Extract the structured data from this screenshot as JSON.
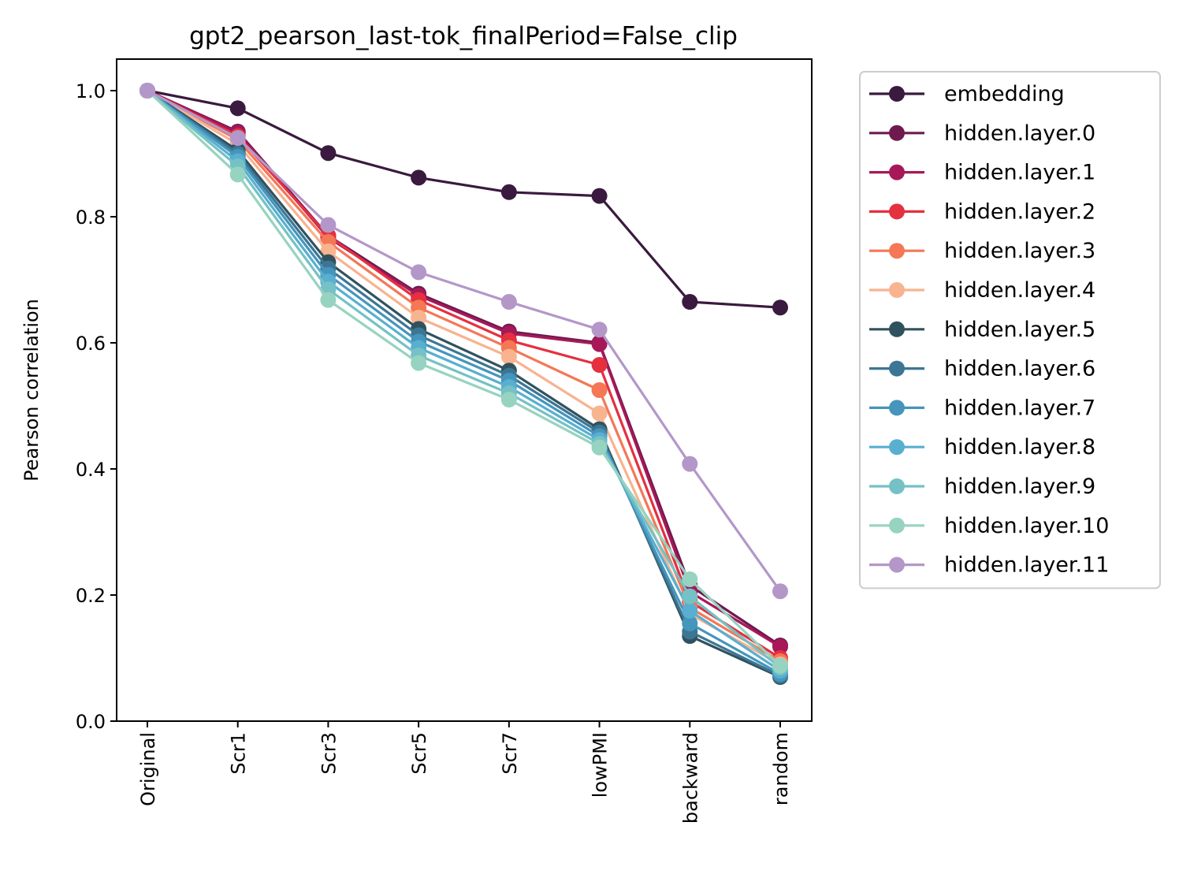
{
  "chart_data": {
    "type": "line",
    "title": "gpt2_pearson_last-tok_finalPeriod=False_clip",
    "xlabel": "",
    "ylabel": "Pearson correlation",
    "categories": [
      "Original",
      "Scr1",
      "Scr3",
      "Scr5",
      "Scr7",
      "lowPMI",
      "backward",
      "random"
    ],
    "ylim": [
      0.0,
      1.05
    ],
    "yticks": [
      0.0,
      0.2,
      0.4,
      0.6,
      0.8,
      1.0
    ],
    "ytick_labels": [
      "0.0",
      "0.2",
      "0.4",
      "0.6",
      "0.8",
      "1.0"
    ],
    "grid": false,
    "legend_position": "outside-right",
    "series": [
      {
        "name": "embedding",
        "color": "#3a1a3e",
        "values": [
          1.0,
          0.972,
          0.901,
          0.862,
          0.839,
          0.833,
          0.665,
          0.656
        ]
      },
      {
        "name": "hidden.layer.0",
        "color": "#6e1a4f",
        "values": [
          1.0,
          0.935,
          0.77,
          0.678,
          0.618,
          0.6,
          0.215,
          0.12
        ]
      },
      {
        "name": "hidden.layer.1",
        "color": "#a71858",
        "values": [
          1.0,
          0.933,
          0.767,
          0.675,
          0.615,
          0.598,
          0.205,
          0.118
        ]
      },
      {
        "name": "hidden.layer.2",
        "color": "#e4303f",
        "values": [
          1.0,
          0.928,
          0.77,
          0.668,
          0.604,
          0.565,
          0.19,
          0.1
        ]
      },
      {
        "name": "hidden.layer.3",
        "color": "#f47756",
        "values": [
          1.0,
          0.922,
          0.76,
          0.656,
          0.592,
          0.525,
          0.18,
          0.095
        ]
      },
      {
        "name": "hidden.layer.4",
        "color": "#f8b38f",
        "values": [
          1.0,
          0.915,
          0.745,
          0.64,
          0.578,
          0.488,
          0.17,
          0.09
        ]
      },
      {
        "name": "hidden.layer.5",
        "color": "#30525e",
        "values": [
          1.0,
          0.905,
          0.728,
          0.622,
          0.556,
          0.463,
          0.135,
          0.07
        ]
      },
      {
        "name": "hidden.layer.6",
        "color": "#3c7694",
        "values": [
          1.0,
          0.9,
          0.718,
          0.612,
          0.548,
          0.458,
          0.142,
          0.072
        ]
      },
      {
        "name": "hidden.layer.7",
        "color": "#4595bc",
        "values": [
          1.0,
          0.895,
          0.708,
          0.602,
          0.54,
          0.452,
          0.155,
          0.075
        ]
      },
      {
        "name": "hidden.layer.8",
        "color": "#58afd0",
        "values": [
          1.0,
          0.888,
          0.697,
          0.592,
          0.53,
          0.446,
          0.175,
          0.08
        ]
      },
      {
        "name": "hidden.layer.9",
        "color": "#75c1c5",
        "values": [
          1.0,
          0.88,
          0.685,
          0.58,
          0.52,
          0.44,
          0.198,
          0.085
        ]
      },
      {
        "name": "hidden.layer.10",
        "color": "#96d3c0",
        "values": [
          1.0,
          0.867,
          0.668,
          0.568,
          0.51,
          0.434,
          0.225,
          0.088
        ]
      },
      {
        "name": "hidden.layer.11",
        "color": "#b497c9",
        "values": [
          1.0,
          0.925,
          0.787,
          0.712,
          0.665,
          0.621,
          0.408,
          0.206
        ]
      }
    ]
  }
}
